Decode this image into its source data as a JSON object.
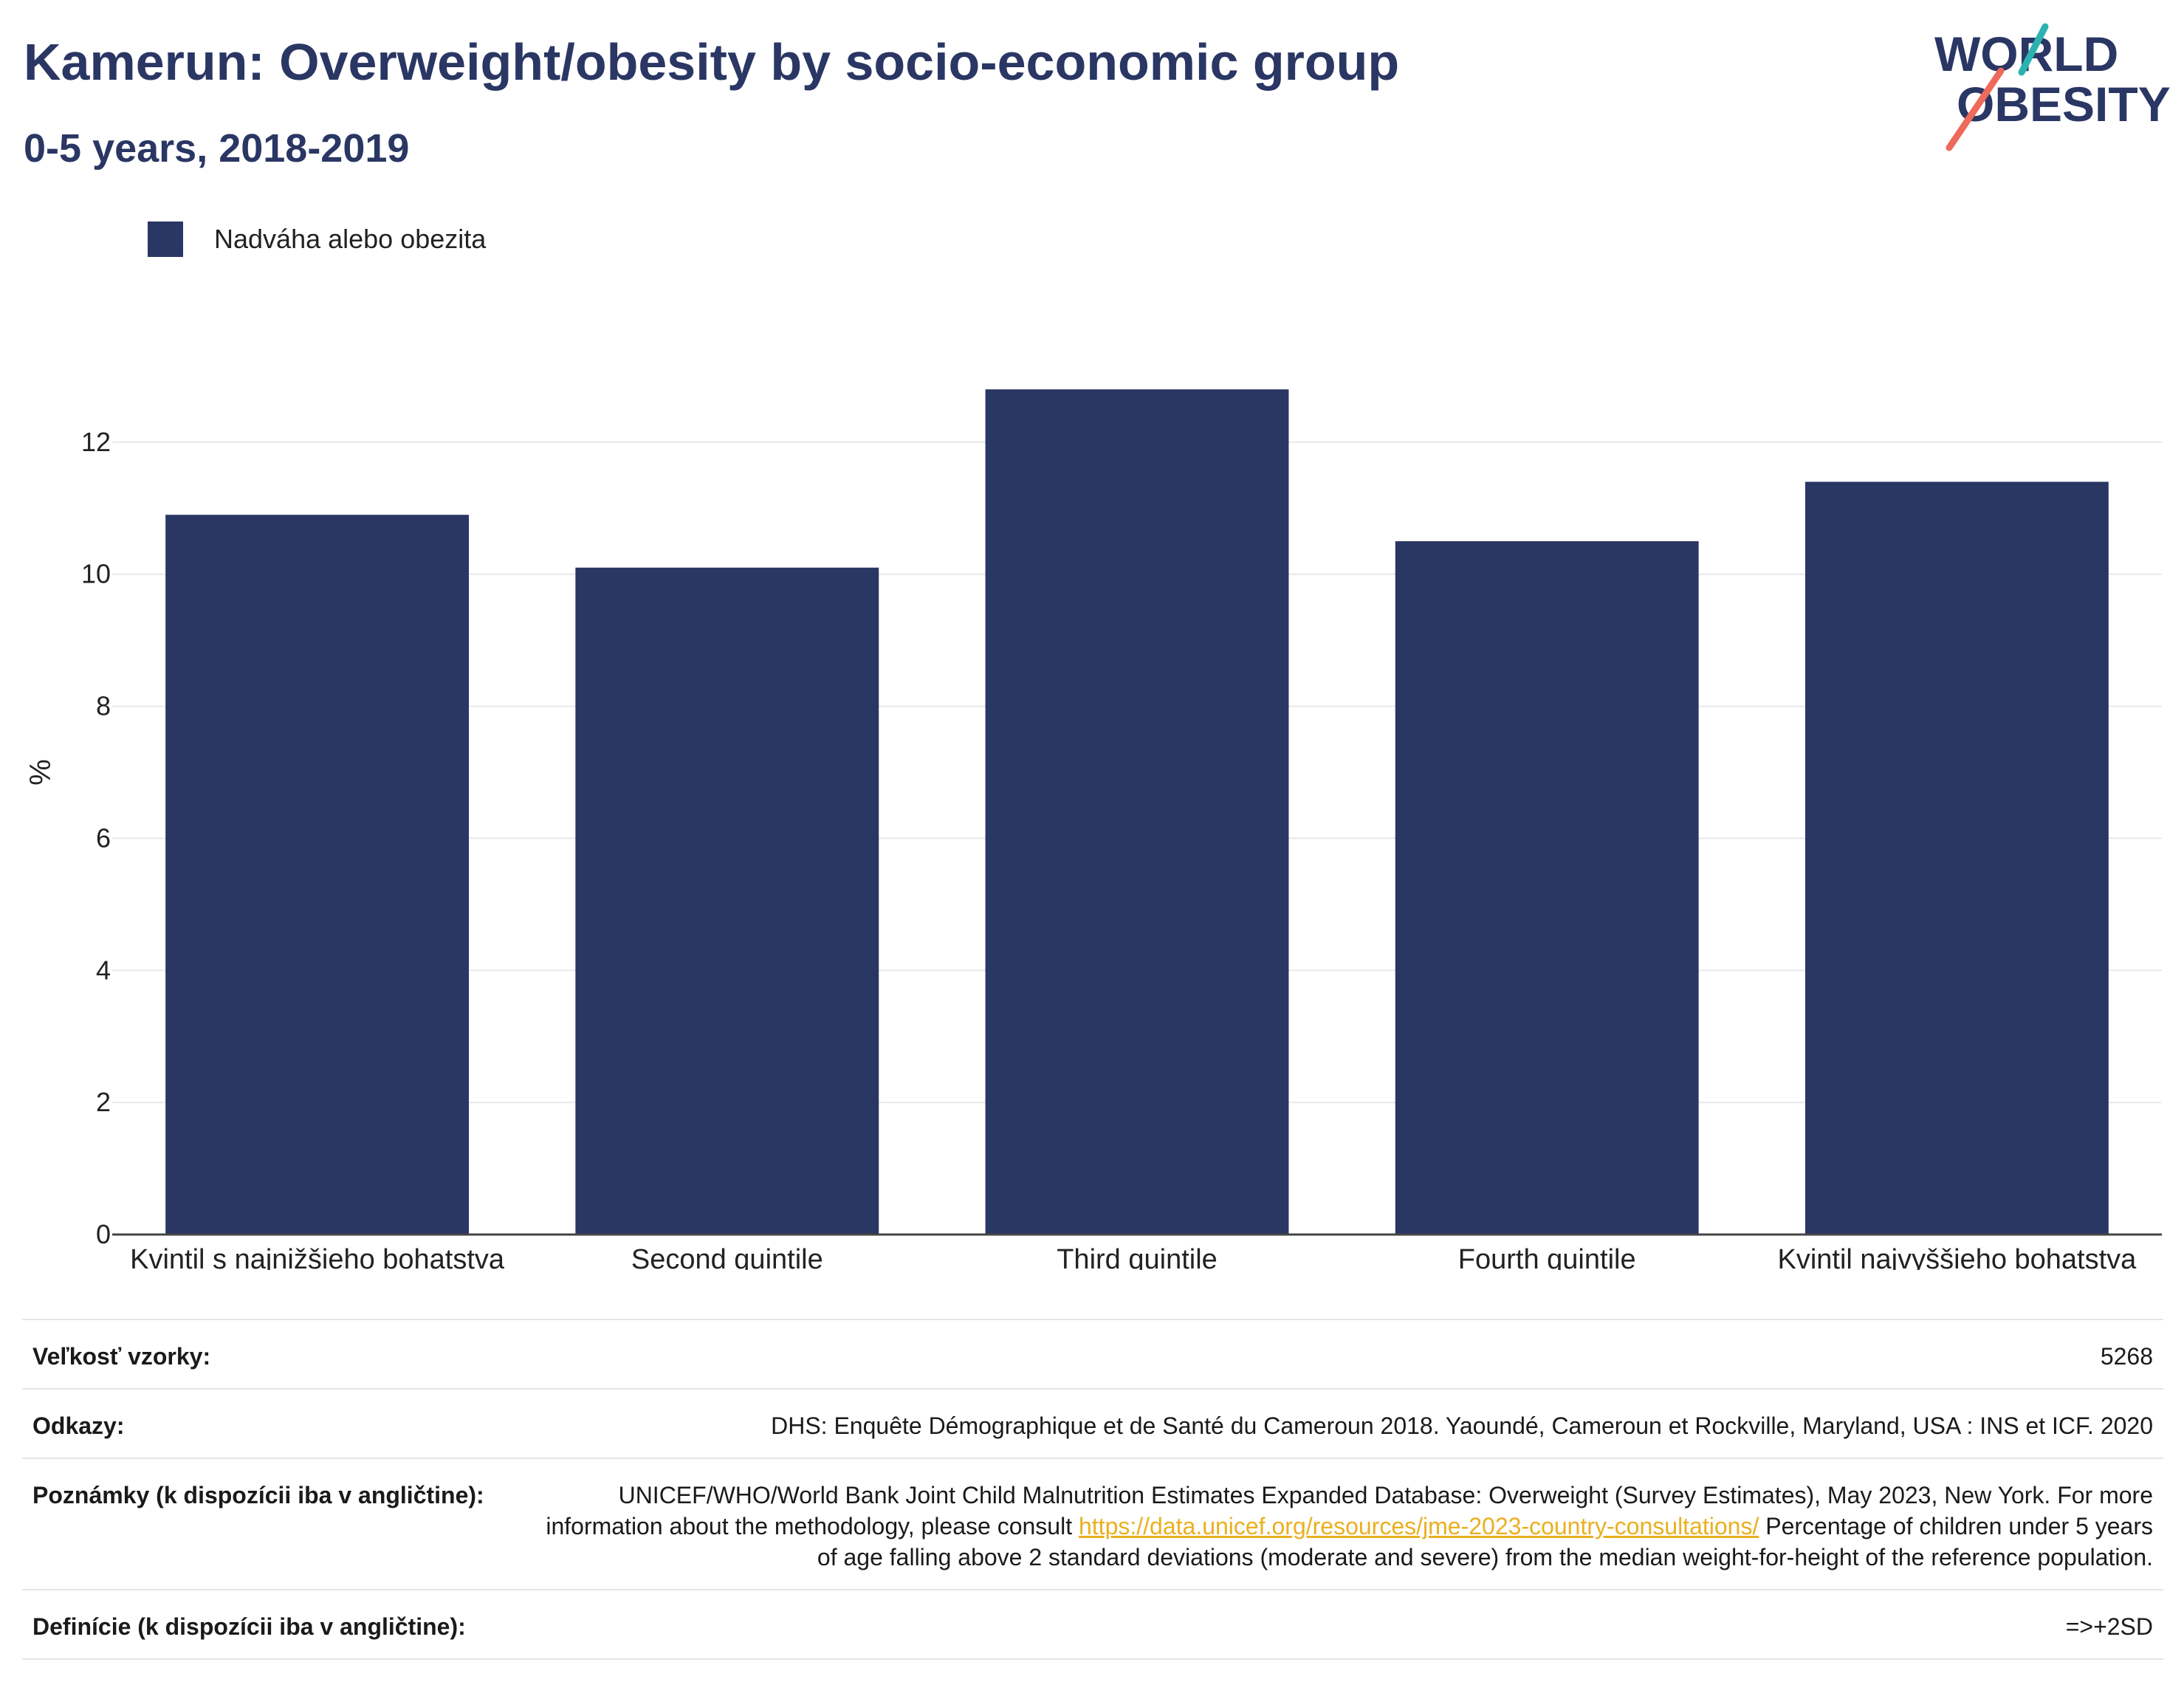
{
  "header": {
    "title": "Kamerun: Overweight/obesity by socio-economic group",
    "subtitle": "0-5 years, 2018-2019"
  },
  "logo": {
    "line1": "WORLD",
    "line2": "OBESITY"
  },
  "colors": {
    "bar": "#2a3663",
    "title": "#2a3663",
    "grid": "#e8e8e8",
    "link": "#e9b01f",
    "logo_teal": "#2bb3b1",
    "logo_coral": "#ee6a5a"
  },
  "chart_data": {
    "type": "bar",
    "title": "Kamerun: Overweight/obesity by socio-economic group",
    "subtitle": "0-5 years, 2018-2019",
    "categories": [
      "Kvintil s najnižšieho bohatstva",
      "Second quintile",
      "Third quintile",
      "Fourth quintile",
      "Kvintil najvyššieho bohatstva"
    ],
    "series": [
      {
        "name": "Nadváha alebo obezita",
        "values": [
          10.9,
          10.1,
          12.8,
          10.5,
          11.4
        ]
      }
    ],
    "ylabel": "%",
    "xlabel": "",
    "ylim": [
      0,
      14
    ],
    "yticks": [
      0,
      2,
      4,
      6,
      8,
      10,
      12
    ],
    "grid": true,
    "legend": "top-left"
  },
  "meta": {
    "rows": [
      {
        "key": "Veľkosť vzorky:",
        "value": "5268"
      },
      {
        "key": "Odkazy:",
        "value": "DHS: Enquête Démographique et de Santé du Cameroun 2018. Yaoundé, Cameroun et Rockville, Maryland, USA : INS et ICF. 2020"
      },
      {
        "key": "Poznámky (k dispozícii iba v angličtine):",
        "value_part1": "UNICEF/WHO/World Bank Joint Child Malnutrition Estimates Expanded Database: Overweight (Survey Estimates), May 2023, New York. For more information about the methodology, please consult ",
        "link": "https://data.unicef.org/resources/jme-2023-country-consultations/",
        "value_part2": " Percentage of children under 5 years of age falling above 2 standard deviations (moderate and severe) from the median weight-for-height of the reference population."
      },
      {
        "key": "Definície (k dispozícii iba v angličtine):",
        "value": "=>+2SD"
      }
    ]
  }
}
